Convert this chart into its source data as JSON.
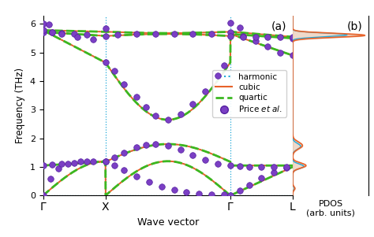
{
  "title_a": "(a)",
  "title_b": "(b)",
  "ylabel": "Frequency (THz)",
  "xlabel": "Wave vector",
  "pdos_xlabel": "PDOS\n(arb. units)",
  "xtick_labels": [
    "Γ",
    "X",
    "Γ",
    "L"
  ],
  "xtick_positions": [
    0,
    1,
    3,
    4
  ],
  "vline_positions": [
    1,
    3
  ],
  "ylim": [
    0,
    6.3
  ],
  "harmonic_color": "#1fa8d8",
  "cubic_color": "#e8622a",
  "quartic_color": "#3bb820",
  "scatter_color": "#7b3fc4",
  "scatter_edgecolor": "#5520a0",
  "background_color": "#ffffff",
  "scatter_pts": [
    [
      0.0,
      0.0
    ],
    [
      0.12,
      0.6
    ],
    [
      0.25,
      0.95
    ],
    [
      0.4,
      1.1
    ],
    [
      0.6,
      1.18
    ],
    [
      0.8,
      1.2
    ],
    [
      1.0,
      1.18
    ],
    [
      1.15,
      1.05
    ],
    [
      1.3,
      0.88
    ],
    [
      1.5,
      0.68
    ],
    [
      1.7,
      0.48
    ],
    [
      1.9,
      0.32
    ],
    [
      2.1,
      0.2
    ],
    [
      2.3,
      0.12
    ],
    [
      2.5,
      0.07
    ],
    [
      2.7,
      0.05
    ],
    [
      2.9,
      0.03
    ],
    [
      3.0,
      0.02
    ],
    [
      3.15,
      0.18
    ],
    [
      3.3,
      0.38
    ],
    [
      3.5,
      0.62
    ],
    [
      3.7,
      0.8
    ],
    [
      3.9,
      0.97
    ],
    [
      0.0,
      1.05
    ],
    [
      0.15,
      1.08
    ],
    [
      0.3,
      1.12
    ],
    [
      0.5,
      1.15
    ],
    [
      0.7,
      1.18
    ],
    [
      1.0,
      1.18
    ],
    [
      1.15,
      1.32
    ],
    [
      1.3,
      1.5
    ],
    [
      1.5,
      1.68
    ],
    [
      1.65,
      1.78
    ],
    [
      1.8,
      1.8
    ],
    [
      2.0,
      1.75
    ],
    [
      2.2,
      1.6
    ],
    [
      2.4,
      1.42
    ],
    [
      2.6,
      1.25
    ],
    [
      2.8,
      1.12
    ],
    [
      3.0,
      1.05
    ],
    [
      3.15,
      1.02
    ],
    [
      3.3,
      1.0
    ],
    [
      3.5,
      1.0
    ],
    [
      3.7,
      1.0
    ],
    [
      3.9,
      1.0
    ],
    [
      0.0,
      5.72
    ],
    [
      0.15,
      5.7
    ],
    [
      0.3,
      5.68
    ],
    [
      0.5,
      5.65
    ],
    [
      0.7,
      5.62
    ],
    [
      1.0,
      5.58
    ],
    [
      1.2,
      5.62
    ],
    [
      1.5,
      5.65
    ],
    [
      1.8,
      5.65
    ],
    [
      2.1,
      5.65
    ],
    [
      2.4,
      5.65
    ],
    [
      2.7,
      5.65
    ],
    [
      3.0,
      5.72
    ],
    [
      3.2,
      5.58
    ],
    [
      3.4,
      5.42
    ],
    [
      3.6,
      5.22
    ],
    [
      3.8,
      5.0
    ],
    [
      4.0,
      4.9
    ],
    [
      0.0,
      5.78
    ],
    [
      0.15,
      5.72
    ],
    [
      0.3,
      5.65
    ],
    [
      0.55,
      5.55
    ],
    [
      0.8,
      5.45
    ],
    [
      1.0,
      4.65
    ],
    [
      1.15,
      4.35
    ],
    [
      1.3,
      3.9
    ],
    [
      1.5,
      3.45
    ],
    [
      1.65,
      3.1
    ],
    [
      1.8,
      2.78
    ],
    [
      2.0,
      2.65
    ],
    [
      2.2,
      2.85
    ],
    [
      2.4,
      3.2
    ],
    [
      2.6,
      3.65
    ],
    [
      2.8,
      4.2
    ],
    [
      2.9,
      4.55
    ],
    [
      3.0,
      5.58
    ],
    [
      3.2,
      5.55
    ],
    [
      3.4,
      5.55
    ],
    [
      3.6,
      5.55
    ],
    [
      3.8,
      5.55
    ],
    [
      4.0,
      5.5
    ],
    [
      0.0,
      6.0
    ],
    [
      0.1,
      5.98
    ],
    [
      1.0,
      5.85
    ],
    [
      3.0,
      6.05
    ],
    [
      3.15,
      5.88
    ],
    [
      4.0,
      5.55
    ]
  ]
}
